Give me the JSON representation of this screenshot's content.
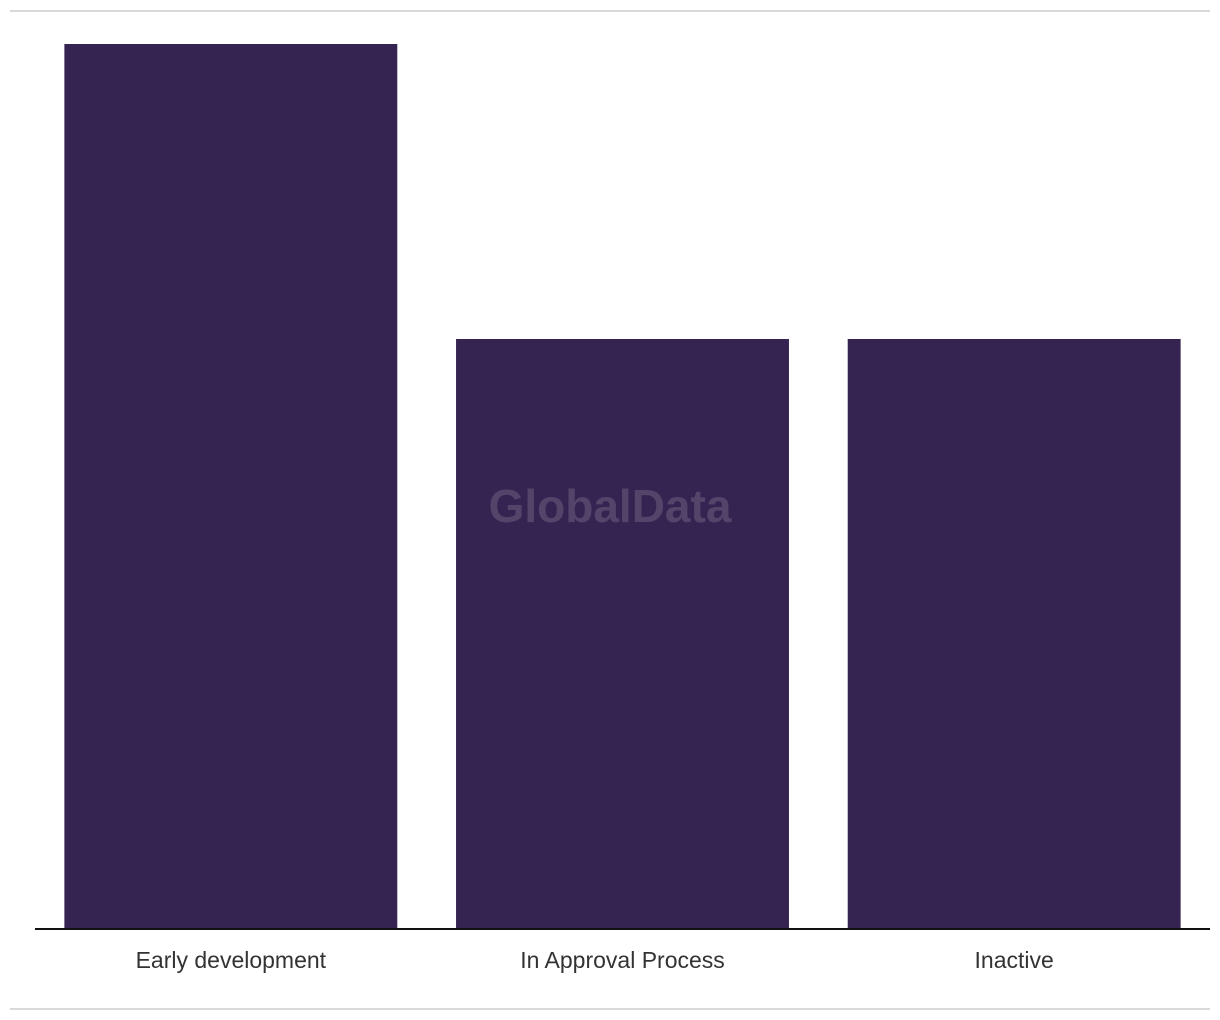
{
  "chart_data": {
    "type": "bar",
    "categories": [
      "Early development",
      "In Approval Process",
      "Inactive"
    ],
    "values": [
      3,
      2,
      2
    ],
    "color": "#352451",
    "ylim": [
      0,
      3
    ],
    "watermark": "GlobalData"
  }
}
